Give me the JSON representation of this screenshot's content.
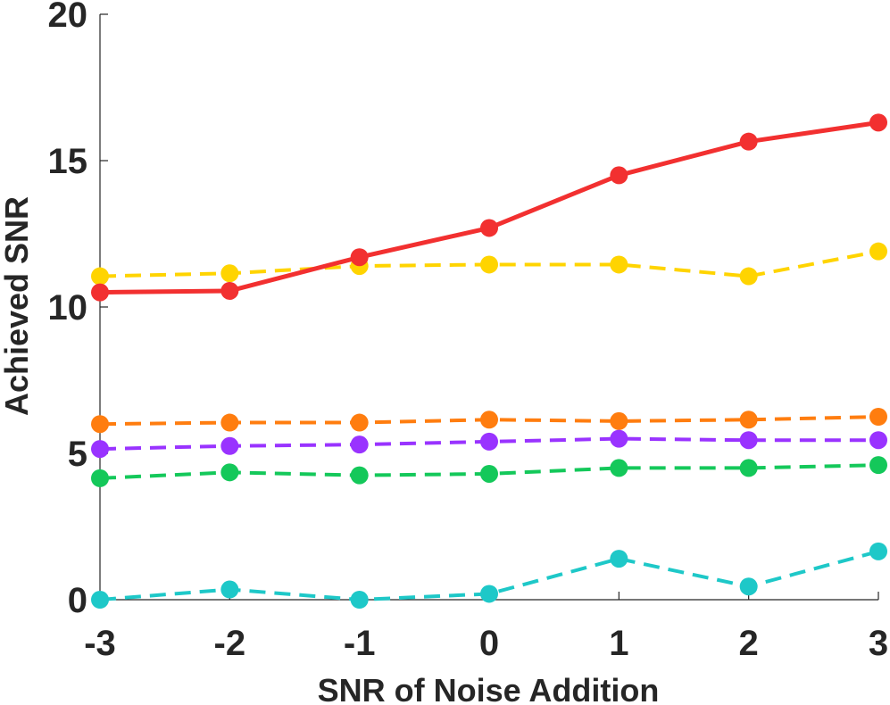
{
  "chart_data": {
    "type": "line",
    "title": "",
    "xlabel": "SNR of Noise Addition",
    "ylabel": "Achieved SNR",
    "xlim": [
      -3,
      3
    ],
    "ylim": [
      0,
      20
    ],
    "x": [
      -3,
      -2,
      -1,
      0,
      1,
      2,
      3
    ],
    "xticks": [
      "-3",
      "-2",
      "-1",
      "0",
      "1",
      "2",
      "3"
    ],
    "yticks": [
      "0",
      "5",
      "10",
      "15",
      "20"
    ],
    "grid": false,
    "series": [
      {
        "name": "red-solid",
        "color": "#f23030",
        "dashed": false,
        "values": [
          10.5,
          10.55,
          11.7,
          12.7,
          14.5,
          15.65,
          16.3
        ]
      },
      {
        "name": "yellow-dashed",
        "color": "#ffd400",
        "dashed": true,
        "values": [
          11.05,
          11.15,
          11.4,
          11.45,
          11.45,
          11.05,
          11.9
        ]
      },
      {
        "name": "orange-dashed",
        "color": "#ff7d0f",
        "dashed": true,
        "values": [
          6.0,
          6.05,
          6.05,
          6.15,
          6.1,
          6.15,
          6.25
        ]
      },
      {
        "name": "purple-dashed",
        "color": "#9933ff",
        "dashed": true,
        "values": [
          5.15,
          5.25,
          5.3,
          5.4,
          5.5,
          5.45,
          5.45
        ]
      },
      {
        "name": "green-dashed",
        "color": "#14c85a",
        "dashed": true,
        "values": [
          4.15,
          4.35,
          4.25,
          4.3,
          4.5,
          4.5,
          4.6
        ]
      },
      {
        "name": "cyan-dashed",
        "color": "#1ec8c8",
        "dashed": true,
        "values": [
          0.0,
          0.35,
          0.0,
          0.2,
          1.4,
          0.45,
          1.65
        ]
      }
    ]
  }
}
